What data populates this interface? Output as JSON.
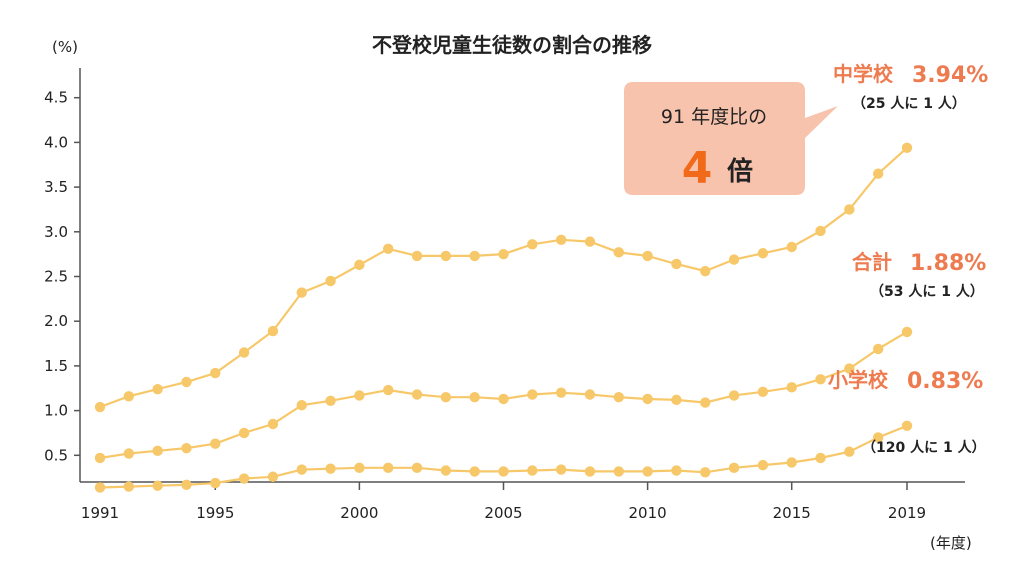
{
  "chart_data": {
    "type": "line",
    "title": "不登校児童生徒数の割合の推移",
    "y_unit": "(%)",
    "x_unit": "(年度)",
    "ylim": [
      0,
      4.5
    ],
    "yticks": [
      "0.5",
      "1.0",
      "1.5",
      "2.0",
      "2.5",
      "3.0",
      "3.5",
      "4.0",
      "4.5"
    ],
    "xlim": [
      1991,
      2019
    ],
    "xticks": [
      "1991",
      "1995",
      "2000",
      "2005",
      "2010",
      "2015",
      "2019"
    ],
    "x": [
      1991,
      1992,
      1993,
      1994,
      1995,
      1996,
      1997,
      1998,
      1999,
      2000,
      2001,
      2002,
      2003,
      2004,
      2005,
      2006,
      2007,
      2008,
      2009,
      2010,
      2011,
      2012,
      2013,
      2014,
      2015,
      2016,
      2017,
      2018,
      2019
    ],
    "grid": false,
    "series": [
      {
        "name": "中学校",
        "value_label": "3.94%",
        "ratio_label": "（25 人に 1 人）",
        "values": [
          1.04,
          1.16,
          1.24,
          1.32,
          1.42,
          1.65,
          1.89,
          2.32,
          2.45,
          2.63,
          2.81,
          2.73,
          2.73,
          2.73,
          2.75,
          2.86,
          2.91,
          2.89,
          2.77,
          2.73,
          2.64,
          2.56,
          2.69,
          2.76,
          2.83,
          3.01,
          3.25,
          3.65,
          3.94
        ]
      },
      {
        "name": "合計",
        "value_label": "1.88%",
        "ratio_label": "（53 人に 1 人）",
        "values": [
          0.47,
          0.52,
          0.55,
          0.58,
          0.63,
          0.75,
          0.85,
          1.06,
          1.11,
          1.17,
          1.23,
          1.18,
          1.15,
          1.15,
          1.13,
          1.18,
          1.2,
          1.18,
          1.15,
          1.13,
          1.12,
          1.09,
          1.17,
          1.21,
          1.26,
          1.35,
          1.47,
          1.69,
          1.88
        ]
      },
      {
        "name": "小学校",
        "value_label": "0.83%",
        "ratio_label": "（120 人に 1 人）",
        "values": [
          0.14,
          0.15,
          0.16,
          0.17,
          0.19,
          0.24,
          0.26,
          0.34,
          0.35,
          0.36,
          0.36,
          0.36,
          0.33,
          0.32,
          0.32,
          0.33,
          0.34,
          0.32,
          0.32,
          0.32,
          0.33,
          0.31,
          0.36,
          0.39,
          0.42,
          0.47,
          0.54,
          0.7,
          0.83
        ]
      }
    ],
    "callout": {
      "line1": "91 年度比の",
      "big": "4",
      "unit": "倍"
    }
  },
  "colors": {
    "line": "#f7c86a",
    "accent": "#ee7a4f",
    "callout_bg": "#f8c3ad",
    "callout_number": "#f06a1a"
  }
}
